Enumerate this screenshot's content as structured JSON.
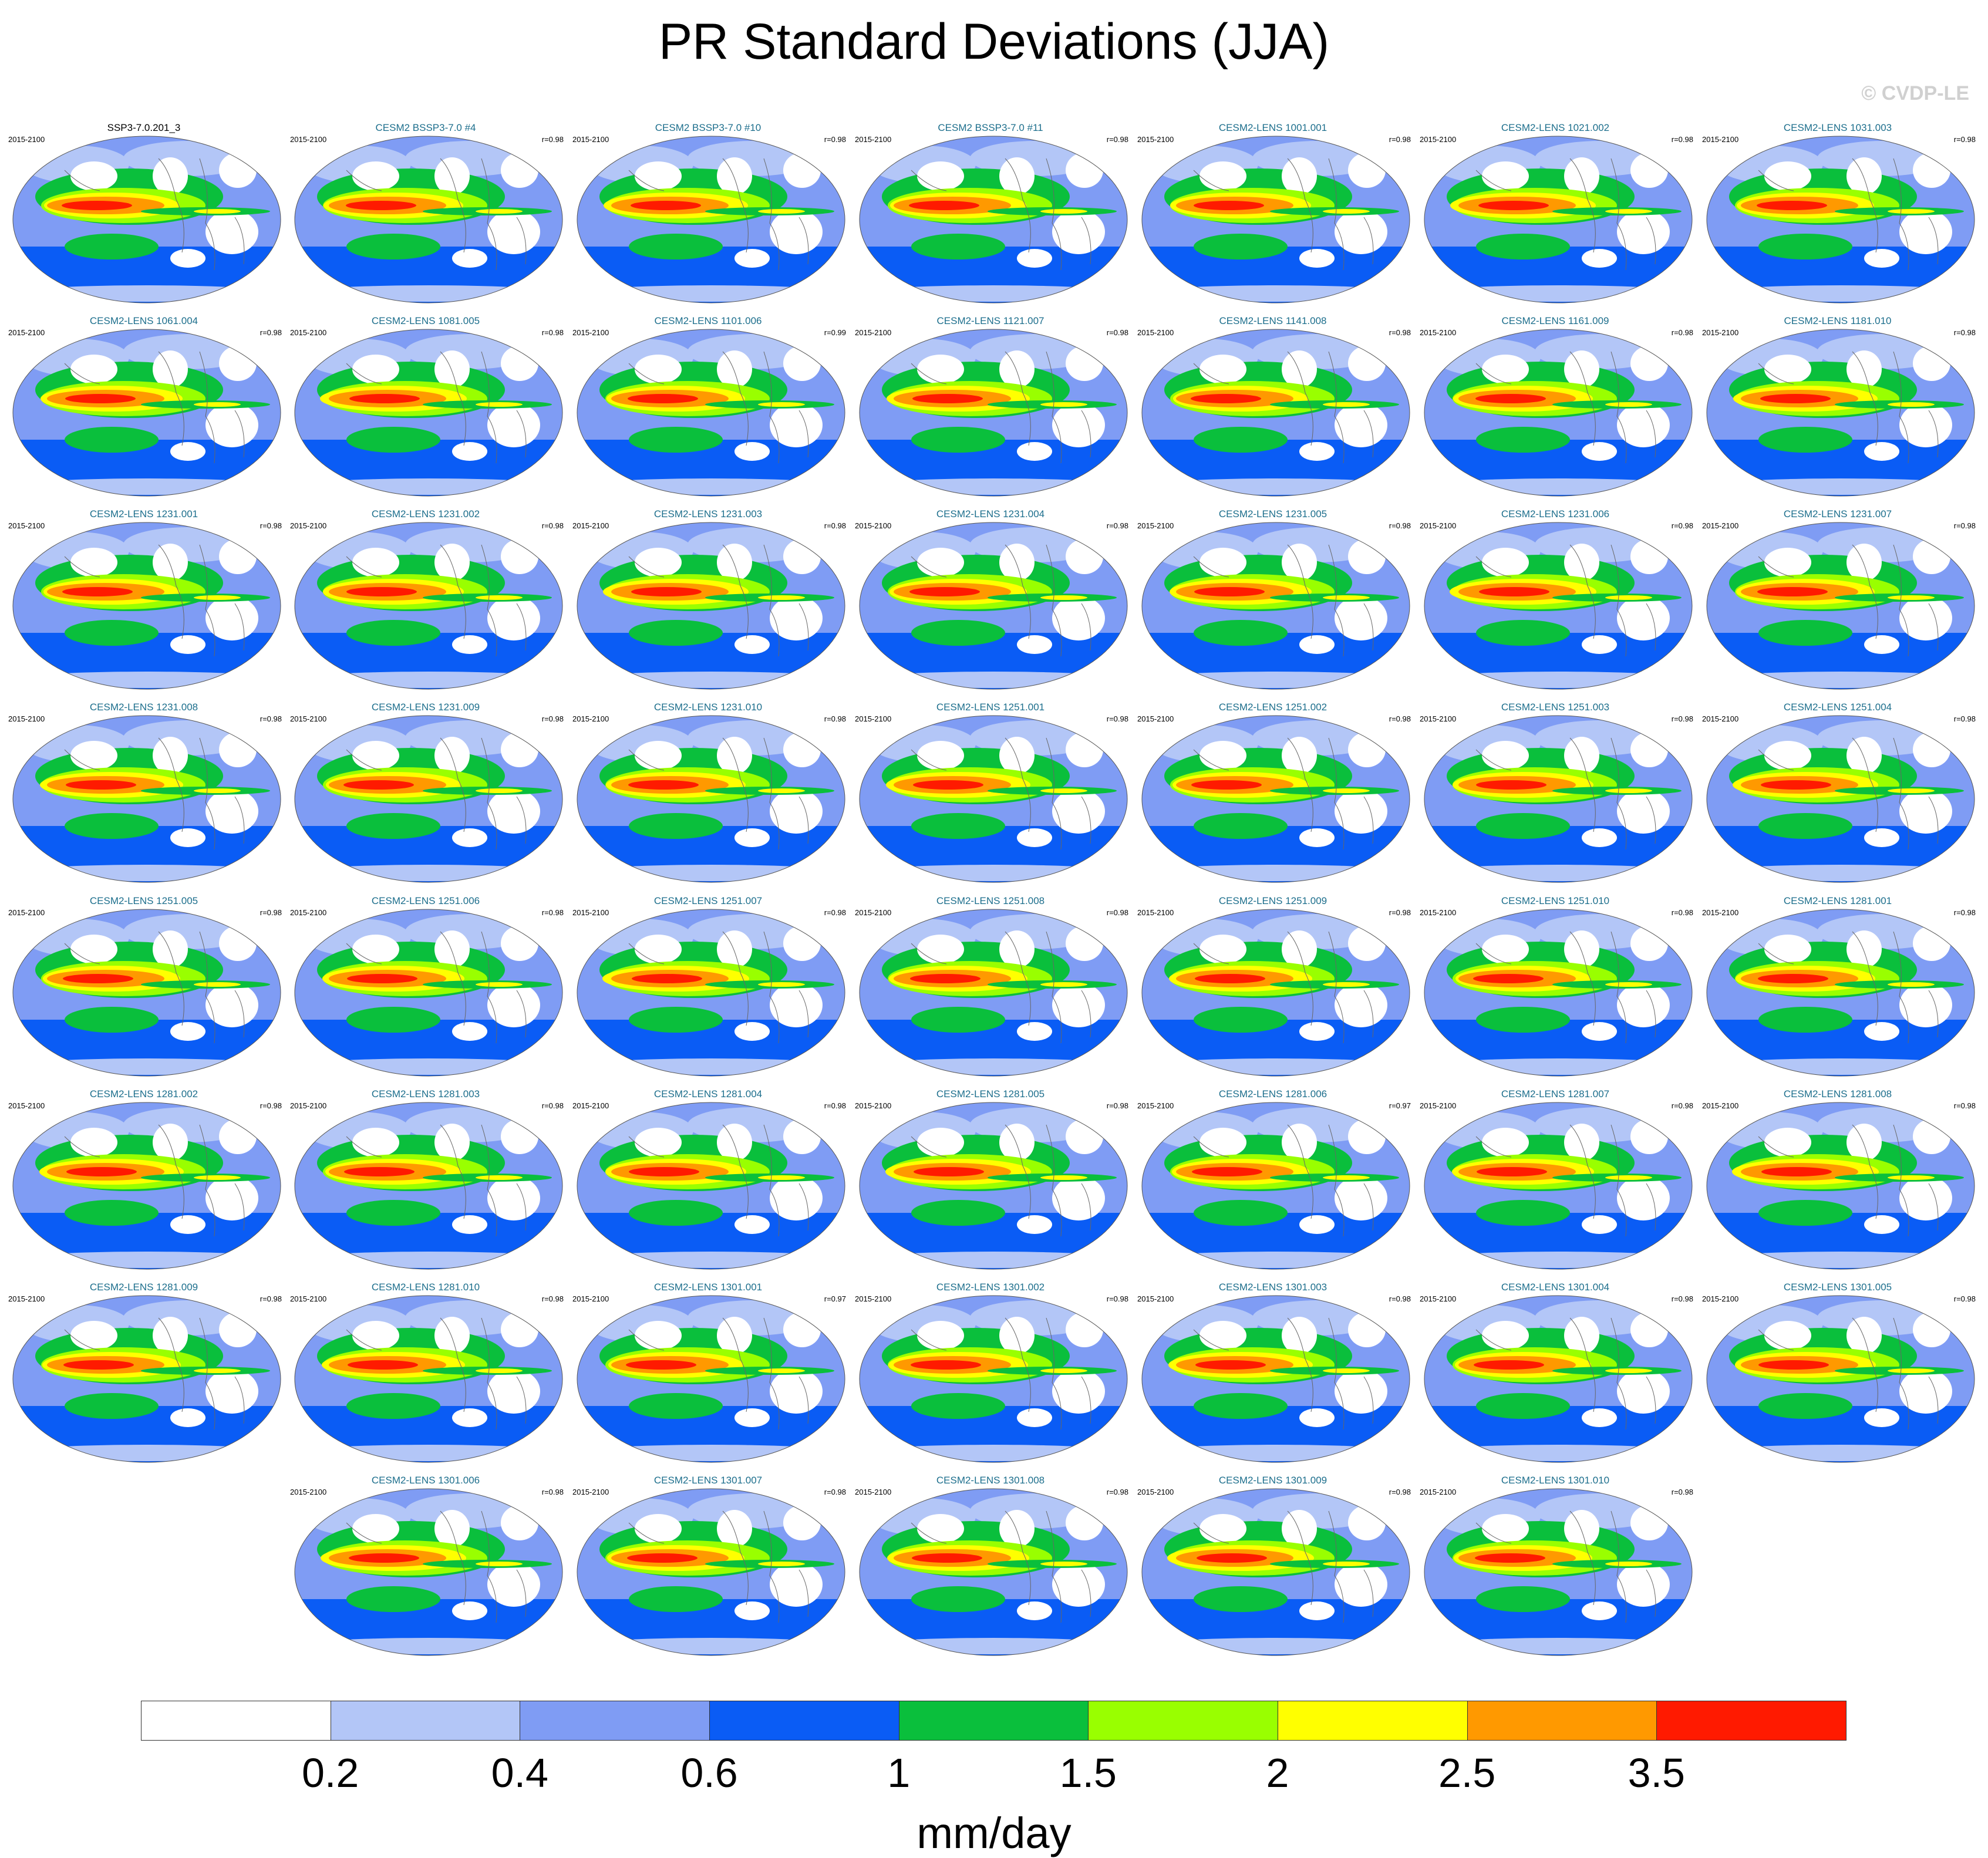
{
  "title": "PR Standard Deviations (JJA)",
  "copyright": "© CVDP-LE",
  "chart_data": {
    "type": "heatmap",
    "title": "PR Standard Deviations (JJA)",
    "period": "2015-2100",
    "reference": "SSP3-7.0.201_3",
    "units": "mm/day",
    "colorbar": {
      "levels": [
        "0.2",
        "0.4",
        "0.6",
        "1",
        "1.5",
        "2",
        "2.5",
        "3.5"
      ],
      "colors": [
        "#ffffff",
        "#b3c6f7",
        "#7f9cf4",
        "#0a5cf5",
        "#0abf3c",
        "#99ff00",
        "#ffff00",
        "#ff9900",
        "#ff1a00"
      ]
    },
    "panels": [
      {
        "title": "SSP3-7.0.201_3",
        "period": "2015-2100",
        "r": ""
      },
      {
        "title": "CESM2 BSSP3-7.0 #4",
        "period": "2015-2100",
        "r": "r=0.98"
      },
      {
        "title": "CESM2 BSSP3-7.0 #10",
        "period": "2015-2100",
        "r": "r=0.98"
      },
      {
        "title": "CESM2 BSSP3-7.0 #11",
        "period": "2015-2100",
        "r": "r=0.98"
      },
      {
        "title": "CESM2-LENS 1001.001",
        "period": "2015-2100",
        "r": "r=0.98"
      },
      {
        "title": "CESM2-LENS 1021.002",
        "period": "2015-2100",
        "r": "r=0.98"
      },
      {
        "title": "CESM2-LENS 1031.003",
        "period": "2015-2100",
        "r": "r=0.98"
      },
      {
        "title": "CESM2-LENS 1061.004",
        "period": "2015-2100",
        "r": "r=0.98"
      },
      {
        "title": "CESM2-LENS 1081.005",
        "period": "2015-2100",
        "r": "r=0.98"
      },
      {
        "title": "CESM2-LENS 1101.006",
        "period": "2015-2100",
        "r": "r=0.99"
      },
      {
        "title": "CESM2-LENS 1121.007",
        "period": "2015-2100",
        "r": "r=0.98"
      },
      {
        "title": "CESM2-LENS 1141.008",
        "period": "2015-2100",
        "r": "r=0.98"
      },
      {
        "title": "CESM2-LENS 1161.009",
        "period": "2015-2100",
        "r": "r=0.98"
      },
      {
        "title": "CESM2-LENS 1181.010",
        "period": "2015-2100",
        "r": "r=0.98"
      },
      {
        "title": "CESM2-LENS 1231.001",
        "period": "2015-2100",
        "r": "r=0.98"
      },
      {
        "title": "CESM2-LENS 1231.002",
        "period": "2015-2100",
        "r": "r=0.98"
      },
      {
        "title": "CESM2-LENS 1231.003",
        "period": "2015-2100",
        "r": "r=0.98"
      },
      {
        "title": "CESM2-LENS 1231.004",
        "period": "2015-2100",
        "r": "r=0.98"
      },
      {
        "title": "CESM2-LENS 1231.005",
        "period": "2015-2100",
        "r": "r=0.98"
      },
      {
        "title": "CESM2-LENS 1231.006",
        "period": "2015-2100",
        "r": "r=0.98"
      },
      {
        "title": "CESM2-LENS 1231.007",
        "period": "2015-2100",
        "r": "r=0.98"
      },
      {
        "title": "CESM2-LENS 1231.008",
        "period": "2015-2100",
        "r": "r=0.98"
      },
      {
        "title": "CESM2-LENS 1231.009",
        "period": "2015-2100",
        "r": "r=0.98"
      },
      {
        "title": "CESM2-LENS 1231.010",
        "period": "2015-2100",
        "r": "r=0.98"
      },
      {
        "title": "CESM2-LENS 1251.001",
        "period": "2015-2100",
        "r": "r=0.98"
      },
      {
        "title": "CESM2-LENS 1251.002",
        "period": "2015-2100",
        "r": "r=0.98"
      },
      {
        "title": "CESM2-LENS 1251.003",
        "period": "2015-2100",
        "r": "r=0.98"
      },
      {
        "title": "CESM2-LENS 1251.004",
        "period": "2015-2100",
        "r": "r=0.98"
      },
      {
        "title": "CESM2-LENS 1251.005",
        "period": "2015-2100",
        "r": "r=0.98"
      },
      {
        "title": "CESM2-LENS 1251.006",
        "period": "2015-2100",
        "r": "r=0.98"
      },
      {
        "title": "CESM2-LENS 1251.007",
        "period": "2015-2100",
        "r": "r=0.98"
      },
      {
        "title": "CESM2-LENS 1251.008",
        "period": "2015-2100",
        "r": "r=0.98"
      },
      {
        "title": "CESM2-LENS 1251.009",
        "period": "2015-2100",
        "r": "r=0.98"
      },
      {
        "title": "CESM2-LENS 1251.010",
        "period": "2015-2100",
        "r": "r=0.98"
      },
      {
        "title": "CESM2-LENS 1281.001",
        "period": "2015-2100",
        "r": "r=0.98"
      },
      {
        "title": "CESM2-LENS 1281.002",
        "period": "2015-2100",
        "r": "r=0.98"
      },
      {
        "title": "CESM2-LENS 1281.003",
        "period": "2015-2100",
        "r": "r=0.98"
      },
      {
        "title": "CESM2-LENS 1281.004",
        "period": "2015-2100",
        "r": "r=0.98"
      },
      {
        "title": "CESM2-LENS 1281.005",
        "period": "2015-2100",
        "r": "r=0.98"
      },
      {
        "title": "CESM2-LENS 1281.006",
        "period": "2015-2100",
        "r": "r=0.97"
      },
      {
        "title": "CESM2-LENS 1281.007",
        "period": "2015-2100",
        "r": "r=0.98"
      },
      {
        "title": "CESM2-LENS 1281.008",
        "period": "2015-2100",
        "r": "r=0.98"
      },
      {
        "title": "CESM2-LENS 1281.009",
        "period": "2015-2100",
        "r": "r=0.98"
      },
      {
        "title": "CESM2-LENS 1281.010",
        "period": "2015-2100",
        "r": "r=0.98"
      },
      {
        "title": "CESM2-LENS 1301.001",
        "period": "2015-2100",
        "r": "r=0.97"
      },
      {
        "title": "CESM2-LENS 1301.002",
        "period": "2015-2100",
        "r": "r=0.98"
      },
      {
        "title": "CESM2-LENS 1301.003",
        "period": "2015-2100",
        "r": "r=0.98"
      },
      {
        "title": "CESM2-LENS 1301.004",
        "period": "2015-2100",
        "r": "r=0.98"
      },
      {
        "title": "CESM2-LENS 1301.005",
        "period": "2015-2100",
        "r": "r=0.98"
      },
      {
        "title": "CESM2-LENS 1301.006",
        "period": "2015-2100",
        "r": "r=0.98"
      },
      {
        "title": "CESM2-LENS 1301.007",
        "period": "2015-2100",
        "r": "r=0.98"
      },
      {
        "title": "CESM2-LENS 1301.008",
        "period": "2015-2100",
        "r": "r=0.98"
      },
      {
        "title": "CESM2-LENS 1301.009",
        "period": "2015-2100",
        "r": "r=0.98"
      },
      {
        "title": "CESM2-LENS 1301.010",
        "period": "2015-2100",
        "r": "r=0.98"
      }
    ]
  }
}
